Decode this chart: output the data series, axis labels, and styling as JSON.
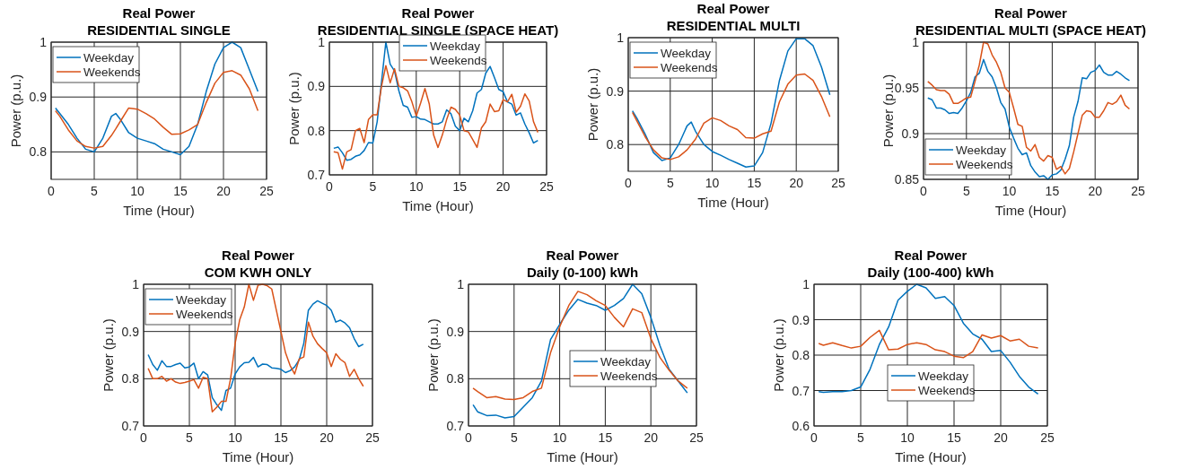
{
  "chart_data": [
    {
      "type": "line",
      "title": "Real Power",
      "subtitle": "RESIDENTIAL SINGLE",
      "xlabel": "Time (Hour)",
      "ylabel": "Power (p.u.)",
      "xlim": [
        0,
        25
      ],
      "xticks": [
        0,
        5,
        10,
        15,
        20,
        25
      ],
      "ylim": [
        0.75,
        1
      ],
      "yticks": [
        0.8,
        0.9,
        1
      ],
      "grid": true,
      "legend": "top left",
      "x": [
        0.5,
        1,
        2,
        3,
        4,
        5,
        6,
        7,
        7.5,
        8,
        9,
        10,
        11,
        12,
        13,
        14,
        15,
        16,
        17,
        18,
        19,
        20,
        21,
        22,
        23,
        24
      ],
      "series": [
        {
          "name": "Weekday",
          "color": "#0072bd",
          "values": [
            0.88,
            0.87,
            0.85,
            0.825,
            0.805,
            0.8,
            0.825,
            0.865,
            0.87,
            0.86,
            0.835,
            0.825,
            0.82,
            0.815,
            0.805,
            0.8,
            0.795,
            0.81,
            0.85,
            0.91,
            0.96,
            0.99,
            1.0,
            0.99,
            0.95,
            0.91
          ]
        },
        {
          "name": "Weekends",
          "color": "#d95319",
          "values": [
            0.875,
            0.865,
            0.84,
            0.82,
            0.81,
            0.807,
            0.81,
            0.83,
            0.842,
            0.855,
            0.88,
            0.878,
            0.87,
            0.86,
            0.845,
            0.832,
            0.833,
            0.84,
            0.85,
            0.89,
            0.925,
            0.945,
            0.948,
            0.94,
            0.915,
            0.875
          ]
        }
      ]
    },
    {
      "type": "line",
      "title": "Real Power",
      "subtitle": "RESIDENTIAL SINGLE (SPACE HEAT)",
      "xlabel": "Time (Hour)",
      "ylabel": "Power (p.u.)",
      "xlim": [
        0,
        25
      ],
      "xticks": [
        0,
        5,
        10,
        15,
        20,
        25
      ],
      "ylim": [
        0.7,
        1
      ],
      "yticks": [
        0.7,
        0.8,
        0.9,
        1
      ],
      "grid": true,
      "legend": "top",
      "x": [
        0.5,
        1,
        1.5,
        2,
        2.5,
        3,
        3.5,
        4,
        4.5,
        5,
        5.5,
        6,
        6.5,
        7,
        7.5,
        8,
        8.5,
        9,
        9.5,
        10,
        10.5,
        11,
        11.5,
        12,
        12.5,
        13,
        13.5,
        14,
        14.5,
        15,
        15.5,
        16,
        16.5,
        17,
        17.5,
        18,
        18.5,
        19,
        19.5,
        20,
        20.5,
        21,
        21.5,
        22,
        22.5,
        23,
        23.5,
        24
      ],
      "series": [
        {
          "name": "Weekday",
          "color": "#0072bd",
          "values": [
            0.76,
            0.763,
            0.75,
            0.733,
            0.735,
            0.742,
            0.745,
            0.755,
            0.773,
            0.772,
            0.82,
            0.91,
            1.0,
            0.95,
            0.935,
            0.89,
            0.857,
            0.853,
            0.83,
            0.832,
            0.826,
            0.825,
            0.82,
            0.815,
            0.815,
            0.82,
            0.847,
            0.838,
            0.81,
            0.8,
            0.828,
            0.82,
            0.845,
            0.885,
            0.893,
            0.93,
            0.945,
            0.92,
            0.893,
            0.888,
            0.865,
            0.86,
            0.835,
            0.84,
            0.815,
            0.795,
            0.772,
            0.778
          ]
        },
        {
          "name": "Weekends",
          "color": "#d95319",
          "values": [
            0.752,
            0.75,
            0.713,
            0.752,
            0.757,
            0.8,
            0.805,
            0.773,
            0.825,
            0.836,
            0.836,
            0.9,
            0.947,
            0.908,
            0.94,
            0.9,
            0.897,
            0.89,
            0.865,
            0.833,
            0.862,
            0.895,
            0.86,
            0.79,
            0.762,
            0.79,
            0.825,
            0.853,
            0.848,
            0.835,
            0.8,
            0.797,
            0.78,
            0.762,
            0.806,
            0.82,
            0.86,
            0.843,
            0.845,
            0.87,
            0.865,
            0.882,
            0.842,
            0.855,
            0.883,
            0.867,
            0.82,
            0.796
          ]
        }
      ]
    },
    {
      "type": "line",
      "title": "Real Power",
      "subtitle": "RESIDENTIAL MULTI",
      "xlabel": "Time (Hour)",
      "ylabel": "Power (p.u.)",
      "xlim": [
        0,
        25
      ],
      "xticks": [
        0,
        5,
        10,
        15,
        20,
        25
      ],
      "ylim": [
        0.75,
        1
      ],
      "yticks": [
        0.8,
        0.9,
        1
      ],
      "grid": true,
      "legend": "top left",
      "x": [
        0.5,
        1,
        2,
        3,
        4,
        5,
        6,
        7,
        7.5,
        8,
        9,
        10,
        11,
        12,
        13,
        14,
        15,
        16,
        17,
        18,
        19,
        20,
        21,
        22,
        23,
        24
      ],
      "series": [
        {
          "name": "Weekday",
          "color": "#0072bd",
          "values": [
            0.863,
            0.85,
            0.82,
            0.785,
            0.77,
            0.775,
            0.8,
            0.835,
            0.842,
            0.825,
            0.8,
            0.787,
            0.78,
            0.772,
            0.765,
            0.758,
            0.76,
            0.785,
            0.84,
            0.92,
            0.975,
            0.998,
            0.998,
            0.985,
            0.945,
            0.893
          ]
        },
        {
          "name": "Weekends",
          "color": "#d95319",
          "values": [
            0.86,
            0.845,
            0.815,
            0.79,
            0.775,
            0.772,
            0.777,
            0.79,
            0.8,
            0.81,
            0.84,
            0.85,
            0.845,
            0.835,
            0.828,
            0.813,
            0.812,
            0.82,
            0.825,
            0.88,
            0.913,
            0.93,
            0.932,
            0.92,
            0.89,
            0.852
          ]
        }
      ]
    },
    {
      "type": "line",
      "title": "Real Power",
      "subtitle": "RESIDENTIAL MULTI (SPACE HEAT)",
      "xlabel": "Time (Hour)",
      "ylabel": "Power (p.u.)",
      "xlim": [
        0,
        25
      ],
      "xticks": [
        0,
        5,
        10,
        15,
        20,
        25
      ],
      "ylim": [
        0.85,
        1
      ],
      "yticks": [
        0.85,
        0.9,
        0.95,
        1
      ],
      "grid": true,
      "legend": "bottom left",
      "x": [
        0.5,
        1,
        1.5,
        2,
        2.5,
        3,
        3.5,
        4,
        4.5,
        5,
        5.5,
        6,
        6.5,
        7,
        7.5,
        8,
        8.5,
        9,
        9.5,
        10,
        10.5,
        11,
        11.5,
        12,
        12.5,
        13,
        13.5,
        14,
        14.5,
        15,
        15.5,
        16,
        16.5,
        17,
        17.5,
        18,
        18.5,
        19,
        19.5,
        20,
        20.5,
        21,
        21.5,
        22,
        22.5,
        23,
        23.5,
        24
      ],
      "series": [
        {
          "name": "Weekday",
          "color": "#0072bd",
          "values": [
            0.939,
            0.937,
            0.928,
            0.928,
            0.926,
            0.922,
            0.923,
            0.922,
            0.928,
            0.936,
            0.945,
            0.962,
            0.966,
            0.981,
            0.968,
            0.962,
            0.95,
            0.934,
            0.927,
            0.907,
            0.895,
            0.884,
            0.877,
            0.879,
            0.865,
            0.858,
            0.853,
            0.854,
            0.85,
            0.855,
            0.856,
            0.86,
            0.872,
            0.887,
            0.918,
            0.935,
            0.961,
            0.96,
            0.967,
            0.969,
            0.975,
            0.967,
            0.964,
            0.964,
            0.968,
            0.965,
            0.961,
            0.958
          ]
        },
        {
          "name": "Weekends",
          "color": "#d95319",
          "values": [
            0.957,
            0.953,
            0.948,
            0.947,
            0.947,
            0.943,
            0.933,
            0.933,
            0.936,
            0.939,
            0.94,
            0.957,
            0.975,
            1.0,
            0.998,
            0.986,
            0.978,
            0.967,
            0.95,
            0.945,
            0.928,
            0.91,
            0.908,
            0.885,
            0.881,
            0.888,
            0.874,
            0.87,
            0.876,
            0.874,
            0.861,
            0.864,
            0.856,
            0.862,
            0.88,
            0.9,
            0.92,
            0.925,
            0.924,
            0.918,
            0.918,
            0.925,
            0.934,
            0.932,
            0.935,
            0.942,
            0.931,
            0.927
          ]
        }
      ]
    },
    {
      "type": "line",
      "title": "Real Power",
      "subtitle": "COM KWH ONLY",
      "xlabel": "Time (Hour)",
      "ylabel": "Power (p.u.)",
      "xlim": [
        0,
        25
      ],
      "xticks": [
        0,
        5,
        10,
        15,
        20,
        25
      ],
      "ylim": [
        0.7,
        1
      ],
      "yticks": [
        0.7,
        0.8,
        0.9,
        1
      ],
      "grid": true,
      "legend": "top left",
      "x": [
        0.5,
        1,
        1.5,
        2,
        2.5,
        3,
        3.5,
        4,
        4.5,
        5,
        5.5,
        6,
        6.5,
        7,
        7.5,
        8,
        8.5,
        9,
        9.5,
        10,
        10.5,
        11,
        11.5,
        12,
        12.5,
        13,
        13.5,
        14,
        14.5,
        15,
        15.5,
        16,
        16.5,
        17,
        17.5,
        18,
        18.5,
        19,
        19.5,
        20,
        20.5,
        21,
        21.5,
        22,
        22.5,
        23,
        23.5,
        24
      ],
      "series": [
        {
          "name": "Weekday",
          "color": "#0072bd",
          "values": [
            0.851,
            0.83,
            0.818,
            0.838,
            0.826,
            0.826,
            0.83,
            0.833,
            0.823,
            0.825,
            0.833,
            0.8,
            0.815,
            0.808,
            0.76,
            0.745,
            0.733,
            0.775,
            0.78,
            0.81,
            0.825,
            0.834,
            0.835,
            0.845,
            0.825,
            0.831,
            0.83,
            0.823,
            0.822,
            0.82,
            0.813,
            0.817,
            0.825,
            0.84,
            0.875,
            0.945,
            0.958,
            0.965,
            0.96,
            0.955,
            0.945,
            0.92,
            0.924,
            0.918,
            0.908,
            0.885,
            0.868,
            0.873
          ]
        },
        {
          "name": "Weekends",
          "color": "#d95319",
          "values": [
            0.822,
            0.8,
            0.8,
            0.805,
            0.795,
            0.8,
            0.793,
            0.79,
            0.792,
            0.795,
            0.798,
            0.78,
            0.803,
            0.8,
            0.73,
            0.74,
            0.752,
            0.752,
            0.8,
            0.875,
            0.925,
            0.952,
            1.0,
            0.966,
            0.998,
            1.0,
            0.997,
            0.99,
            0.945,
            0.9,
            0.855,
            0.828,
            0.81,
            0.842,
            0.846,
            0.92,
            0.89,
            0.874,
            0.864,
            0.855,
            0.826,
            0.853,
            0.841,
            0.834,
            0.805,
            0.82,
            0.8,
            0.784
          ]
        }
      ]
    },
    {
      "type": "line",
      "title": "Real Power",
      "subtitle": "Daily (0-100) kWh",
      "xlabel": "Time (Hour)",
      "ylabel": "Power (p.u.)",
      "xlim": [
        0,
        25
      ],
      "xticks": [
        0,
        5,
        10,
        15,
        20,
        25
      ],
      "ylim": [
        0.7,
        1
      ],
      "yticks": [
        0.7,
        0.8,
        0.9,
        1
      ],
      "grid": true,
      "legend": "right",
      "x": [
        0.5,
        1,
        2,
        3,
        4,
        5,
        6,
        7,
        8,
        9,
        10,
        11,
        12,
        13,
        14,
        15,
        16,
        17,
        18,
        19,
        20,
        21,
        22,
        23,
        24
      ],
      "series": [
        {
          "name": "Weekday",
          "color": "#0072bd",
          "values": [
            0.745,
            0.73,
            0.722,
            0.723,
            0.717,
            0.72,
            0.74,
            0.76,
            0.795,
            0.883,
            0.915,
            0.945,
            0.968,
            0.96,
            0.955,
            0.945,
            0.955,
            0.97,
            1.0,
            0.98,
            0.93,
            0.87,
            0.82,
            0.795,
            0.77
          ]
        },
        {
          "name": "Weekends",
          "color": "#d95319",
          "values": [
            0.78,
            0.773,
            0.76,
            0.762,
            0.757,
            0.756,
            0.76,
            0.773,
            0.78,
            0.855,
            0.91,
            0.955,
            0.985,
            0.978,
            0.965,
            0.955,
            0.93,
            0.91,
            0.948,
            0.94,
            0.885,
            0.845,
            0.818,
            0.795,
            0.78
          ]
        }
      ]
    },
    {
      "type": "line",
      "title": "Real Power",
      "subtitle": "Daily (100-400) kWh",
      "xlabel": "Time (Hour)",
      "ylabel": "Power (p.u.)",
      "xlim": [
        0,
        25
      ],
      "xticks": [
        0,
        5,
        10,
        15,
        20,
        25
      ],
      "ylim": [
        0.6,
        1
      ],
      "yticks": [
        0.6,
        0.7,
        0.8,
        0.9,
        1
      ],
      "grid": true,
      "legend": "bottom",
      "x": [
        0.5,
        1,
        2,
        3,
        4,
        5,
        6,
        7,
        8,
        9,
        10,
        11,
        12,
        13,
        14,
        15,
        16,
        17,
        18,
        19,
        20,
        21,
        22,
        23,
        24
      ],
      "series": [
        {
          "name": "Weekday",
          "color": "#0072bd",
          "values": [
            0.697,
            0.695,
            0.697,
            0.697,
            0.7,
            0.71,
            0.76,
            0.83,
            0.88,
            0.955,
            0.98,
            1.0,
            0.99,
            0.96,
            0.965,
            0.94,
            0.89,
            0.86,
            0.845,
            0.81,
            0.813,
            0.78,
            0.74,
            0.71,
            0.69
          ]
        },
        {
          "name": "Weekends",
          "color": "#d95319",
          "values": [
            0.833,
            0.828,
            0.835,
            0.827,
            0.82,
            0.825,
            0.85,
            0.87,
            0.815,
            0.817,
            0.83,
            0.835,
            0.83,
            0.815,
            0.81,
            0.797,
            0.793,
            0.81,
            0.857,
            0.848,
            0.855,
            0.84,
            0.845,
            0.825,
            0.82
          ]
        }
      ]
    }
  ]
}
